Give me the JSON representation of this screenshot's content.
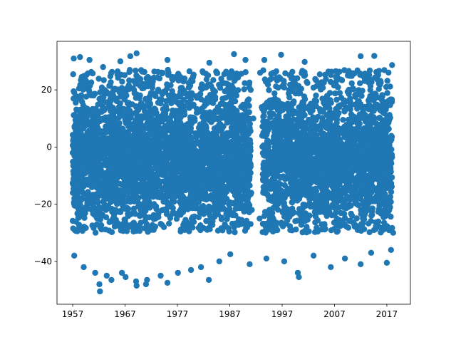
{
  "chart_data": {
    "type": "scatter",
    "title": "",
    "xlabel": "",
    "ylabel": "",
    "xlim": [
      1954.0,
      2021.5
    ],
    "ylim": [
      -55.0,
      37.0
    ],
    "xticks": [
      1957,
      1967,
      1977,
      1987,
      1997,
      2007,
      2017
    ],
    "yticks": [
      -40,
      -20,
      0,
      20
    ],
    "grid": false,
    "legend": "none",
    "marker_color": "#1f77b4",
    "series": [
      {
        "name": "",
        "x_range": [
          1957.0,
          2018.0
        ],
        "y_range": [
          -51.0,
          33.0
        ],
        "gap_x": [
          1991.0,
          1993.2
        ],
        "sampled_points": [
          [
            1957.2,
            31
          ],
          [
            1958.4,
            31.5
          ],
          [
            1960.2,
            30.5
          ],
          [
            1962.8,
            28
          ],
          [
            1966.1,
            30
          ],
          [
            1968.0,
            31.8
          ],
          [
            1969.2,
            32.8
          ],
          [
            1975.1,
            30.5
          ],
          [
            1983.1,
            29.5
          ],
          [
            1987.8,
            32.5
          ],
          [
            1990.0,
            30.5
          ],
          [
            1993.6,
            30.5
          ],
          [
            1996.8,
            32.3
          ],
          [
            2001.3,
            29.8
          ],
          [
            2012.0,
            31.8
          ],
          [
            2014.6,
            31.9
          ],
          [
            2018.0,
            28.7
          ],
          [
            1957.3,
            -38
          ],
          [
            1959.1,
            -42
          ],
          [
            1961.3,
            -44
          ],
          [
            1962.1,
            -48
          ],
          [
            1962.2,
            -50.5
          ],
          [
            1963.5,
            -45
          ],
          [
            1964.4,
            -46.5
          ],
          [
            1966.4,
            -44
          ],
          [
            1967.1,
            -45.5
          ],
          [
            1969.1,
            -47
          ],
          [
            1969.2,
            -48.5
          ],
          [
            1971.0,
            -48
          ],
          [
            1971.2,
            -46.5
          ],
          [
            1973.8,
            -45
          ],
          [
            1975.1,
            -47.5
          ],
          [
            1977.1,
            -44
          ],
          [
            1979.6,
            -43
          ],
          [
            1981.5,
            -42
          ],
          [
            1983.0,
            -46.5
          ],
          [
            1985.0,
            -40
          ],
          [
            1987.1,
            -37.5
          ],
          [
            1990.8,
            -41
          ],
          [
            1994.0,
            -39
          ],
          [
            1997.4,
            -40
          ],
          [
            2000.0,
            -44
          ],
          [
            2000.2,
            -45.5
          ],
          [
            2003.0,
            -38
          ],
          [
            2006.3,
            -42
          ],
          [
            2009.0,
            -39
          ],
          [
            2012.0,
            -41
          ],
          [
            2014.0,
            -37
          ],
          [
            2017.0,
            -40.5
          ],
          [
            1991.0,
            20
          ],
          [
            1991.5,
            10
          ],
          [
            1991.1,
            -16
          ],
          [
            1991.2,
            -22
          ],
          [
            1992.7,
            -25
          ],
          [
            1993.2,
            4
          ],
          [
            1993.1,
            14
          ],
          [
            1992.8,
            26
          ],
          [
            2018.2,
            -30
          ],
          [
            2018.0,
            -28.3
          ],
          [
            2017.8,
            -36
          ]
        ]
      }
    ]
  }
}
